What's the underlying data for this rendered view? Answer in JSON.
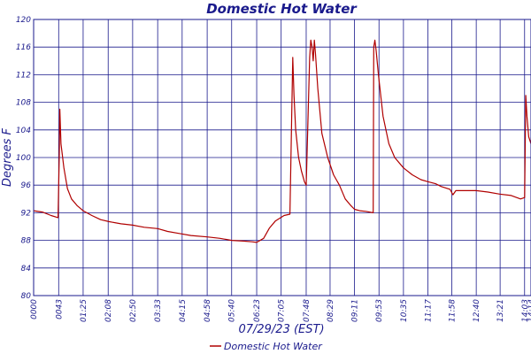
{
  "chart_data": {
    "type": "line",
    "title": "Domestic Hot Water",
    "xlabel": "07/29/23 (EST)",
    "ylabel": "Degrees F",
    "ylim": [
      80,
      120
    ],
    "yticks": [
      80,
      84,
      88,
      92,
      96,
      100,
      104,
      108,
      112,
      116,
      120
    ],
    "x_tick_labels": [
      "0000",
      "0043",
      "01:25",
      "02:08",
      "02:50",
      "03:33",
      "04:15",
      "04:58",
      "05:40",
      "06:23",
      "07:05",
      "07:48",
      "08:29",
      "09:11",
      "09:53",
      "10:35",
      "11:17",
      "11:58",
      "12:40",
      "13:21",
      "14:03",
      "14:14"
    ],
    "x_tick_minutes": [
      0,
      43,
      85,
      128,
      170,
      213,
      255,
      298,
      340,
      383,
      425,
      468,
      509,
      551,
      593,
      635,
      677,
      718,
      760,
      801,
      843,
      854
    ],
    "x_range_minutes": [
      0,
      854
    ],
    "grid": true,
    "legend_position": "bottom-center",
    "colors": {
      "line": "#b00000",
      "grid": "#1a1a8c",
      "text": "#1a1a8c",
      "frame": "#1a1a8c"
    },
    "series": [
      {
        "name": "Domestic Hot Water",
        "points": [
          [
            0,
            92.3
          ],
          [
            15,
            92.1
          ],
          [
            30,
            91.6
          ],
          [
            42,
            91.3
          ],
          [
            44,
            100.5
          ],
          [
            45,
            107
          ],
          [
            47,
            102
          ],
          [
            52,
            98.5
          ],
          [
            58,
            95.5
          ],
          [
            65,
            94
          ],
          [
            75,
            93
          ],
          [
            85,
            92.3
          ],
          [
            100,
            91.6
          ],
          [
            115,
            91
          ],
          [
            130,
            90.7
          ],
          [
            150,
            90.4
          ],
          [
            170,
            90.2
          ],
          [
            190,
            89.9
          ],
          [
            213,
            89.7
          ],
          [
            230,
            89.3
          ],
          [
            250,
            89
          ],
          [
            270,
            88.7
          ],
          [
            298,
            88.5
          ],
          [
            320,
            88.3
          ],
          [
            340,
            88
          ],
          [
            360,
            87.9
          ],
          [
            375,
            87.8
          ],
          [
            383,
            87.7
          ],
          [
            395,
            88.3
          ],
          [
            405,
            89.8
          ],
          [
            415,
            90.8
          ],
          [
            430,
            91.6
          ],
          [
            440,
            91.8
          ],
          [
            445,
            114.5
          ],
          [
            447,
            109
          ],
          [
            450,
            104
          ],
          [
            455,
            100
          ],
          [
            460,
            98
          ],
          [
            465,
            96.5
          ],
          [
            468,
            96
          ],
          [
            474,
            114.5
          ],
          [
            476,
            117
          ],
          [
            478,
            116
          ],
          [
            480,
            114
          ],
          [
            482,
            117
          ],
          [
            484,
            115
          ],
          [
            488,
            110
          ],
          [
            495,
            103.5
          ],
          [
            505,
            100
          ],
          [
            515,
            97.5
          ],
          [
            525,
            96
          ],
          [
            535,
            94
          ],
          [
            545,
            93
          ],
          [
            551,
            92.5
          ],
          [
            560,
            92.3
          ],
          [
            570,
            92.2
          ],
          [
            583,
            92
          ],
          [
            584,
            116
          ],
          [
            586,
            117
          ],
          [
            588,
            115.5
          ],
          [
            592,
            112
          ],
          [
            600,
            106
          ],
          [
            610,
            102
          ],
          [
            620,
            100
          ],
          [
            635,
            98.5
          ],
          [
            650,
            97.5
          ],
          [
            665,
            96.8
          ],
          [
            677,
            96.5
          ],
          [
            690,
            96.2
          ],
          [
            700,
            95.8
          ],
          [
            715,
            95.4
          ],
          [
            720,
            94.6
          ],
          [
            725,
            95.2
          ],
          [
            740,
            95.2
          ],
          [
            760,
            95.2
          ],
          [
            780,
            95
          ],
          [
            800,
            94.7
          ],
          [
            820,
            94.5
          ],
          [
            836,
            94
          ],
          [
            843,
            94.2
          ],
          [
            845,
            109
          ],
          [
            847,
            106
          ],
          [
            850,
            103
          ],
          [
            854,
            102
          ]
        ]
      }
    ]
  }
}
